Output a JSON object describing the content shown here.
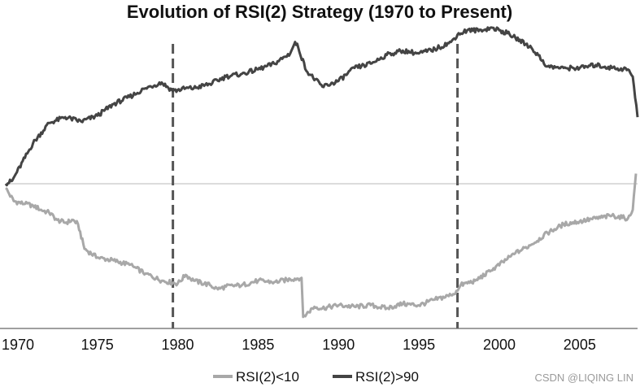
{
  "chart_data": {
    "type": "line",
    "title": "Evolution of RSI(2) Strategy (1970 to Present)",
    "xlabel": "",
    "ylabel": "",
    "xlim": [
      1969.3,
      2008.6
    ],
    "ylim": [
      -100,
      100
    ],
    "x_ticks": [
      "1970",
      "1975",
      "1980",
      "1985",
      "1990",
      "1995",
      "2000",
      "2005"
    ],
    "grid": false,
    "legend_position": "bottom-center",
    "baseline": 0,
    "regime_markers_x": [
      1979.7,
      1997.4
    ],
    "series": [
      {
        "name": "RSI(2)<10",
        "color": "#a8a8a8",
        "x": [
          1969.3,
          1969.8,
          1970.5,
          1971.0,
          1971.5,
          1972.0,
          1972.5,
          1973.0,
          1973.5,
          1973.8,
          1974.2,
          1975.0,
          1976.0,
          1977.0,
          1978.0,
          1979.0,
          1980.0,
          1980.5,
          1981.0,
          1982.0,
          1982.5,
          1983.0,
          1984.0,
          1985.0,
          1986.0,
          1987.0,
          1987.7,
          1987.8,
          1988.5,
          1989.0,
          1990.0,
          1991.0,
          1992.0,
          1993.0,
          1994.0,
          1995.0,
          1996.0,
          1997.0,
          1997.4,
          1997.6,
          1998.5,
          1999.5,
          2000.5,
          2001.0,
          2002.0,
          2003.0,
          2004.0,
          2005.0,
          2006.0,
          2007.0,
          2008.0,
          2008.3,
          2008.5
        ],
        "values": [
          -3,
          -12,
          -14,
          -15,
          -18,
          -20,
          -25,
          -27,
          -25,
          -28,
          -45,
          -51,
          -53,
          -56,
          -62,
          -67,
          -69,
          -63,
          -67,
          -70,
          -73,
          -71,
          -70,
          -67,
          -68,
          -66,
          -65,
          -92,
          -85,
          -86,
          -84,
          -85,
          -84,
          -86,
          -83,
          -84,
          -80,
          -77,
          -74,
          -70,
          -67,
          -60,
          -52,
          -48,
          -42,
          -34,
          -28,
          -26,
          -24,
          -22,
          -24,
          -18,
          7
        ]
      },
      {
        "name": "RSI(2)>90",
        "color": "#444444",
        "x": [
          1969.3,
          1969.7,
          1970.0,
          1971.0,
          1972.0,
          1973.0,
          1974.0,
          1975.0,
          1976.0,
          1977.0,
          1978.0,
          1979.0,
          1979.7,
          1980.5,
          1981.0,
          1982.0,
          1983.0,
          1984.0,
          1985.0,
          1986.0,
          1987.0,
          1987.3,
          1987.5,
          1988.0,
          1989.0,
          1990.0,
          1991.0,
          1992.0,
          1993.0,
          1994.0,
          1995.0,
          1996.0,
          1997.0,
          1997.4,
          1998.0,
          1999.0,
          1999.5,
          2000.0,
          2000.5,
          2001.0,
          2002.0,
          2003.0,
          2004.0,
          2005.0,
          2006.0,
          2007.0,
          2008.0,
          2008.3,
          2008.6
        ],
        "values": [
          0,
          2,
          8,
          28,
          42,
          46,
          43,
          47,
          55,
          60,
          66,
          70,
          64,
          66,
          66,
          69,
          74,
          76,
          79,
          83,
          90,
          98,
          94,
          78,
          67,
          71,
          80,
          83,
          89,
          92,
          90,
          93,
          98,
          103,
          106,
          106,
          108,
          106,
          104,
          101,
          94,
          81,
          80,
          80,
          82,
          80,
          79,
          74,
          46
        ]
      }
    ]
  },
  "watermark": "CSDN @LIQING LIN"
}
